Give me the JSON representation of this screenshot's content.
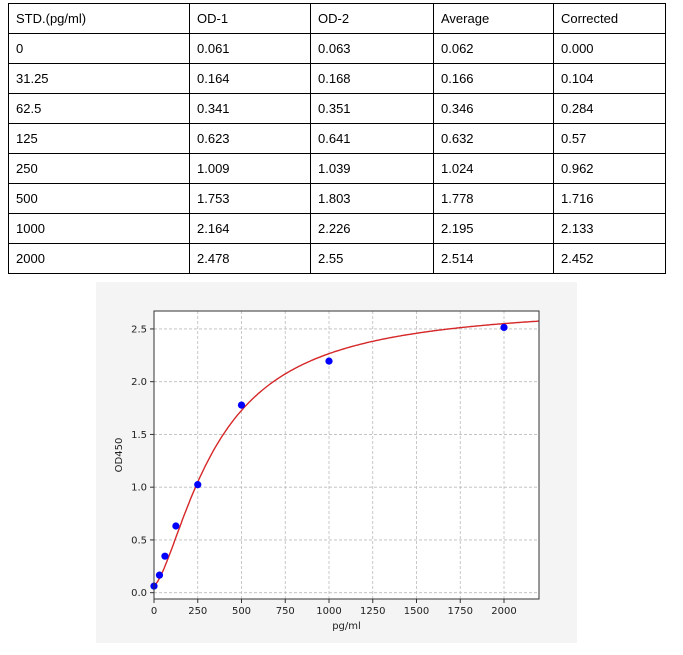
{
  "table": {
    "headers": [
      "STD.(pg/ml)",
      "OD-1",
      "OD-2",
      "Average",
      "Corrected"
    ],
    "rows": [
      [
        "0",
        "0.061",
        "0.063",
        "0.062",
        "0.000"
      ],
      [
        "31.25",
        "0.164",
        "0.168",
        "0.166",
        "0.104"
      ],
      [
        "62.5",
        "0.341",
        "0.351",
        "0.346",
        "0.284"
      ],
      [
        "125",
        "0.623",
        "0.641",
        "0.632",
        "0.57"
      ],
      [
        "250",
        "1.009",
        "1.039",
        "1.024",
        "0.962"
      ],
      [
        "500",
        "1.753",
        "1.803",
        "1.778",
        "1.716"
      ],
      [
        "1000",
        "2.164",
        "2.226",
        "2.195",
        "2.133"
      ],
      [
        "2000",
        "2.478",
        "2.55",
        "2.514",
        "2.452"
      ]
    ]
  },
  "chart_data": {
    "type": "scatter",
    "title": "",
    "xlabel": "pg/ml",
    "ylabel": "OD450",
    "xlim": [
      0,
      2200
    ],
    "ylim": [
      -0.06,
      2.67
    ],
    "xticks": [
      0,
      250,
      500,
      750,
      1000,
      1250,
      1500,
      1750,
      2000
    ],
    "yticks": [
      0.0,
      0.5,
      1.0,
      1.5,
      2.0,
      2.5
    ],
    "ytick_labels": [
      "0.0",
      "0.5",
      "1.0",
      "1.5",
      "2.0",
      "2.5"
    ],
    "grid": true,
    "points": {
      "x": [
        0,
        31.25,
        62.5,
        125,
        250,
        500,
        1000,
        2000
      ],
      "y": [
        0.062,
        0.166,
        0.346,
        0.632,
        1.024,
        1.778,
        2.195,
        2.514
      ],
      "color": "#0000ff"
    },
    "fit_curve": {
      "model": "4PL",
      "a": 0.07,
      "b": 1.5,
      "c": 360,
      "d": 2.74,
      "color": "#d62728"
    }
  }
}
